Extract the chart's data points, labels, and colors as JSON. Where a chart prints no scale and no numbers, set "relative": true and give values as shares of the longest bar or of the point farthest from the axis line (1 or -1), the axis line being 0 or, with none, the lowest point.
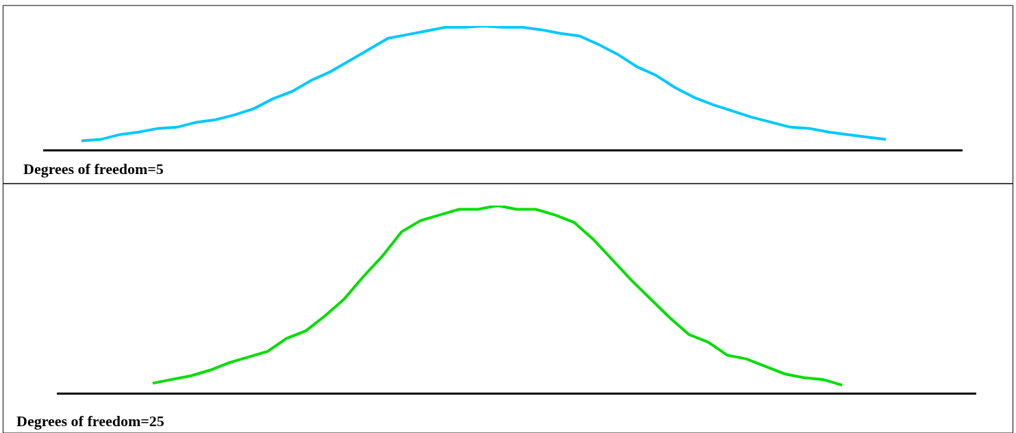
{
  "chart_data": [
    {
      "type": "line",
      "relative": true,
      "categories": [
        null,
        null,
        null,
        null,
        null,
        null,
        null,
        null,
        null,
        null,
        null,
        null,
        null,
        null,
        null,
        null,
        null,
        null,
        null,
        null,
        null,
        null,
        null,
        null,
        null,
        null,
        null,
        null,
        null,
        null,
        null,
        null,
        null,
        null,
        null,
        null,
        null,
        null,
        null,
        null,
        null,
        null,
        null,
        null,
        null,
        null,
        null,
        null,
        null
      ],
      "series": [
        {
          "color": "#00c8ff",
          "values": [
            null,
            null,
            0.07,
            0.08,
            0.12,
            0.14,
            0.17,
            0.18,
            0.22,
            0.24,
            0.28,
            0.33,
            0.41,
            0.47,
            0.56,
            0.63,
            0.72,
            0.81,
            0.9,
            0.93,
            0.96,
            0.99,
            0.99,
            1,
            0.99,
            0.99,
            0.97,
            0.94,
            0.92,
            0.85,
            0.77,
            0.67,
            0.6,
            0.5,
            0.42,
            0.36,
            0.31,
            0.26,
            0.22,
            0.18,
            0.17,
            0.14,
            0.12,
            0.1,
            0.08,
            null,
            null,
            null,
            null
          ]
        }
      ],
      "annotations": [
        "Degrees of freedom=5"
      ],
      "line_style": "solid"
    },
    {
      "type": "line",
      "relative": true,
      "categories": [
        null,
        null,
        null,
        null,
        null,
        null,
        null,
        null,
        null,
        null,
        null,
        null,
        null,
        null,
        null,
        null,
        null,
        null,
        null,
        null,
        null,
        null,
        null,
        null,
        null,
        null,
        null,
        null,
        null,
        null,
        null,
        null,
        null,
        null,
        null,
        null,
        null,
        null,
        null,
        null,
        null,
        null,
        null,
        null,
        null,
        null,
        null,
        null,
        null
      ],
      "series": [
        {
          "color": "#00dd00",
          "values": [
            null,
            null,
            null,
            null,
            null,
            0.05,
            0.07,
            0.09,
            0.12,
            0.16,
            0.19,
            0.22,
            0.29,
            0.33,
            0.41,
            0.5,
            0.62,
            0.73,
            0.86,
            0.92,
            0.95,
            0.98,
            0.98,
            1,
            0.98,
            0.98,
            0.95,
            0.91,
            0.82,
            0.71,
            0.6,
            0.5,
            0.4,
            0.31,
            0.27,
            0.2,
            0.18,
            0.14,
            0.1,
            0.08,
            0.07,
            0.04,
            null,
            null,
            null,
            null,
            null,
            null,
            null
          ]
        }
      ],
      "annotations": [
        "Degrees of freedom=25"
      ],
      "line_style": "solid"
    }
  ]
}
